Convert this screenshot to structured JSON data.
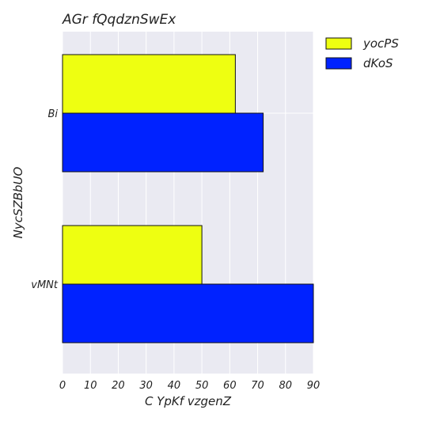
{
  "chart_data": {
    "type": "bar",
    "orientation": "horizontal",
    "title": "AGr fQqdznSwEx",
    "xlabel": "C YpKf vzgenZ",
    "ylabel": "NycSZBbUO",
    "categories": [
      "Bi",
      "vMNt"
    ],
    "series": [
      {
        "name": "yocPS",
        "values": [
          62,
          50
        ],
        "color": "#eeff11"
      },
      {
        "name": "dKoS",
        "values": [
          72,
          90
        ],
        "color": "#0022ff"
      }
    ],
    "xlim": [
      0,
      90
    ],
    "xticks": [
      "0",
      "10",
      "20",
      "30",
      "40",
      "50",
      "60",
      "70",
      "80",
      "90"
    ],
    "grid": true,
    "legend_position": "outside-top-right",
    "plot_background": "#eaeaf2"
  }
}
